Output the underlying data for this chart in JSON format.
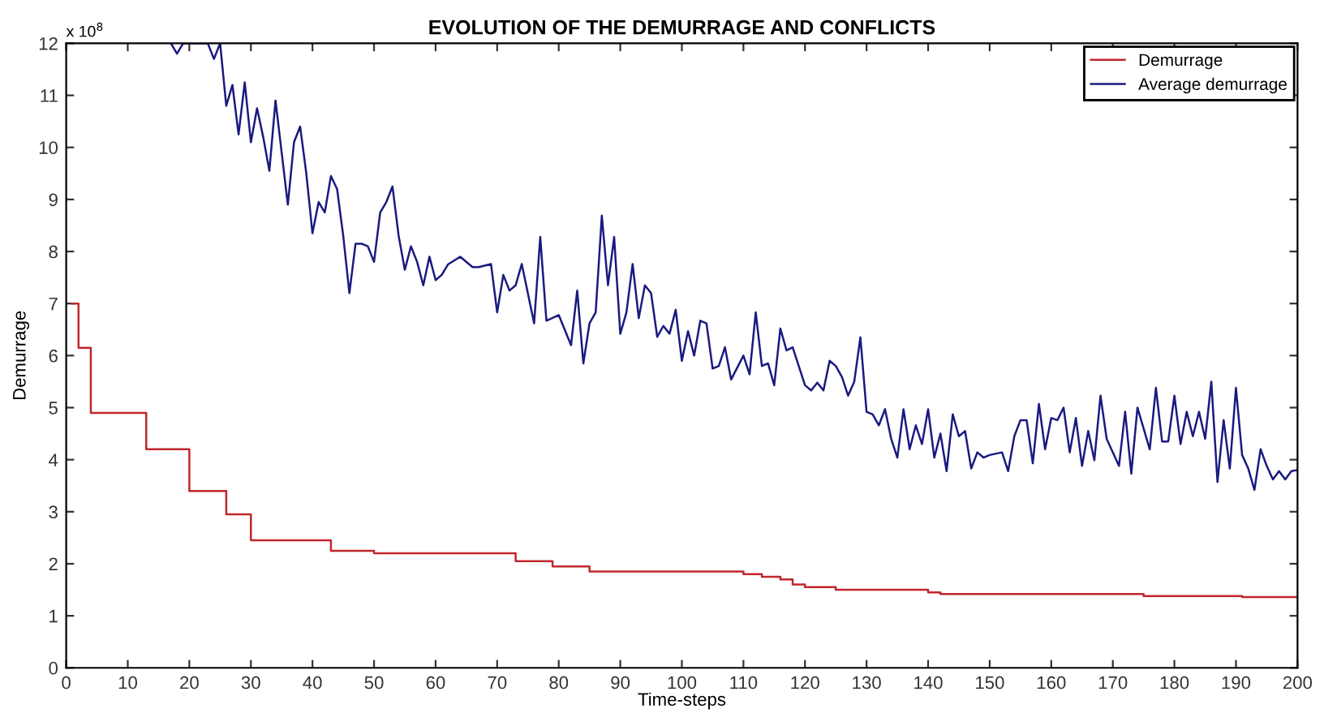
{
  "chart_data": {
    "type": "line",
    "title": "EVOLUTION OF THE DEMURRAGE AND CONFLICTS",
    "xlabel": "Time-steps",
    "ylabel": "Demurrage",
    "annotations": [
      "x 10$^{8}$"
    ],
    "xlim": [
      0,
      200
    ],
    "ylim": [
      0,
      12
    ],
    "xticks": [
      0,
      10,
      20,
      30,
      40,
      50,
      60,
      70,
      80,
      90,
      100,
      110,
      120,
      130,
      140,
      150,
      160,
      170,
      180,
      190,
      200
    ],
    "yticks": [
      0,
      1,
      2,
      3,
      4,
      5,
      6,
      7,
      8,
      9,
      10,
      11,
      12
    ],
    "grid": false,
    "legend": "top right",
    "marker": "none",
    "line_style": "solid",
    "series": [
      {
        "name": "Demurrage",
        "color": "#c0272d",
        "type": "step",
        "x": [
          1,
          2,
          3,
          4,
          12,
          13,
          19,
          20,
          25,
          26,
          29,
          30,
          42,
          43,
          48,
          50,
          72,
          73,
          77,
          79,
          83,
          85,
          104,
          110,
          113,
          116,
          118,
          120,
          125,
          131,
          140,
          142,
          174,
          175,
          190,
          191,
          200
        ],
        "values": [
          7.0,
          6.15,
          6.15,
          4.9,
          4.9,
          4.2,
          4.2,
          3.4,
          3.4,
          2.95,
          2.95,
          2.45,
          2.45,
          2.25,
          2.25,
          2.2,
          2.2,
          2.05,
          2.05,
          1.95,
          1.95,
          1.85,
          1.85,
          1.8,
          1.75,
          1.7,
          1.6,
          1.55,
          1.5,
          1.5,
          1.45,
          1.42,
          1.42,
          1.38,
          1.38,
          1.36,
          1.36
        ]
      },
      {
        "name": "Average demurrage",
        "color": "#1a1a80",
        "x": [
          17,
          18,
          19,
          23,
          24,
          25,
          26,
          27,
          28,
          29,
          30,
          31,
          32,
          33,
          34,
          35,
          36,
          37,
          38,
          39,
          40,
          41,
          42,
          43,
          44,
          45,
          46,
          47,
          48,
          49,
          50,
          51,
          52,
          53,
          54,
          55,
          56,
          57,
          58,
          59,
          60,
          61,
          62,
          64,
          66,
          67,
          69,
          70,
          71,
          72,
          73,
          74,
          76,
          77,
          78,
          80,
          82,
          83,
          84,
          85,
          86,
          87,
          88,
          89,
          90,
          91,
          92,
          93,
          94,
          95,
          96,
          97,
          98,
          99,
          100,
          101,
          102,
          103,
          104,
          105,
          106,
          107,
          108,
          110,
          111,
          112,
          113,
          114,
          115,
          116,
          117,
          118,
          120,
          121,
          122,
          123,
          124,
          125,
          126,
          127,
          128,
          129,
          130,
          131,
          132,
          133,
          134,
          135,
          136,
          137,
          138,
          139,
          140,
          141,
          142,
          143,
          144,
          145,
          146,
          147,
          148,
          149,
          150,
          152,
          153,
          154,
          155,
          156,
          157,
          158,
          159,
          160,
          161,
          162,
          163,
          164,
          165,
          166,
          167,
          168,
          169,
          171,
          172,
          173,
          174,
          175,
          176,
          177,
          178,
          179,
          180,
          181,
          182,
          183,
          184,
          185,
          186,
          187,
          188,
          189,
          190,
          191,
          192,
          193,
          194,
          195,
          196,
          197,
          198,
          199,
          200
        ],
        "values": [
          12,
          11.8,
          12,
          12,
          11.7,
          12,
          10.8,
          11.2,
          10.25,
          11.25,
          10.1,
          10.75,
          10.2,
          9.55,
          10.9,
          9.9,
          8.9,
          10.1,
          10.4,
          9.5,
          8.35,
          8.95,
          8.75,
          9.45,
          9.2,
          8.3,
          7.2,
          8.15,
          8.15,
          8.1,
          7.8,
          8.75,
          8.95,
          9.25,
          8.3,
          7.65,
          8.1,
          7.8,
          7.35,
          7.9,
          7.45,
          7.55,
          7.75,
          7.9,
          7.7,
          7.7,
          7.76,
          6.83,
          7.55,
          7.25,
          7.35,
          7.76,
          6.62,
          8.28,
          6.67,
          6.78,
          6.2,
          7.25,
          5.85,
          6.62,
          6.83,
          8.69,
          7.35,
          8.28,
          6.42,
          6.83,
          7.76,
          6.72,
          7.35,
          7.2,
          6.36,
          6.57,
          6.42,
          6.88,
          5.9,
          6.47,
          6.0,
          6.67,
          6.62,
          5.75,
          5.8,
          6.16,
          5.54,
          6.0,
          5.64,
          6.83,
          5.8,
          5.85,
          5.43,
          6.52,
          6.1,
          6.16,
          5.43,
          5.33,
          5.48,
          5.33,
          5.9,
          5.8,
          5.59,
          5.23,
          5.5,
          6.35,
          4.92,
          4.87,
          4.66,
          4.97,
          4.4,
          4.04,
          4.97,
          4.2,
          4.66,
          4.3,
          4.97,
          4.04,
          4.5,
          3.78,
          4.87,
          4.45,
          4.55,
          3.83,
          4.14,
          4.04,
          4.09,
          4.14,
          3.78,
          4.45,
          4.76,
          4.76,
          3.93,
          5.07,
          4.2,
          4.8,
          4.76,
          5.0,
          4.14,
          4.8,
          3.88,
          4.55,
          3.99,
          5.23,
          4.4,
          3.88,
          4.92,
          3.73,
          5.0,
          4.6,
          4.2,
          5.38,
          4.35,
          4.35,
          5.23,
          4.3,
          4.92,
          4.45,
          4.92,
          4.4,
          5.5,
          3.57,
          4.76,
          3.83,
          5.38,
          4.09,
          3.83,
          3.42,
          4.2,
          3.88,
          3.62,
          3.78,
          3.62,
          3.78,
          3.8
        ]
      }
    ]
  }
}
